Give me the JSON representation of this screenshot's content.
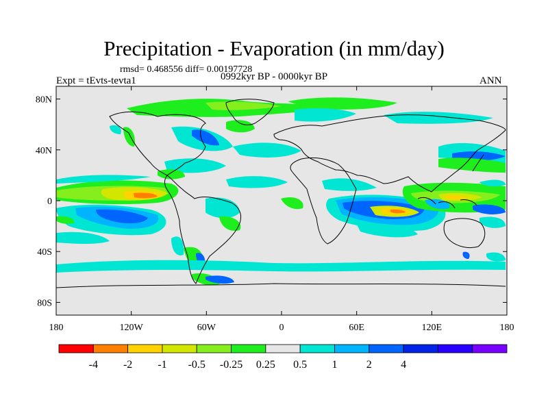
{
  "header": {
    "title": "Precipitation - Evaporation (in mm/day)",
    "stats": "rmsd= 0.468556 diff= 0.00197728",
    "experiment": "Expt = tEvts-tevta1",
    "period": "0992kyr BP - 0000kyr BP",
    "season": "ANN"
  },
  "axes": {
    "lon_ticks": [
      {
        "lon": -180,
        "label": "180"
      },
      {
        "lon": -120,
        "label": "120W"
      },
      {
        "lon": -60,
        "label": "60W"
      },
      {
        "lon": 0,
        "label": "0"
      },
      {
        "lon": 60,
        "label": "60E"
      },
      {
        "lon": 120,
        "label": "120E"
      },
      {
        "lon": 180,
        "label": "180"
      }
    ],
    "lat_ticks": [
      {
        "lat": 80,
        "label": "80N"
      },
      {
        "lat": 40,
        "label": "40N"
      },
      {
        "lat": 0,
        "label": "0"
      },
      {
        "lat": -40,
        "label": "40S"
      },
      {
        "lat": -80,
        "label": "80S"
      }
    ],
    "lon_range": [
      -180,
      180
    ],
    "lat_range": [
      -90,
      90
    ]
  },
  "colorbar": {
    "colors": [
      "#ff0000",
      "#ff8000",
      "#ffd200",
      "#d2e600",
      "#87ee1e",
      "#1eee1e",
      "#e6e6e6",
      "#00e6d2",
      "#00b4ff",
      "#0064ff",
      "#0023e6",
      "#2800ff",
      "#7800ff"
    ],
    "labels": [
      "-4",
      "-2",
      "-1",
      "-0.5",
      "-0.25",
      "0.25",
      "0.5",
      "1",
      "2",
      "4"
    ],
    "label_boundaries": [
      1,
      2,
      3,
      4,
      5,
      6,
      7,
      8,
      9,
      10
    ]
  },
  "colors": {
    "neutral": "#e6e6e6",
    "coast": "#000000"
  }
}
